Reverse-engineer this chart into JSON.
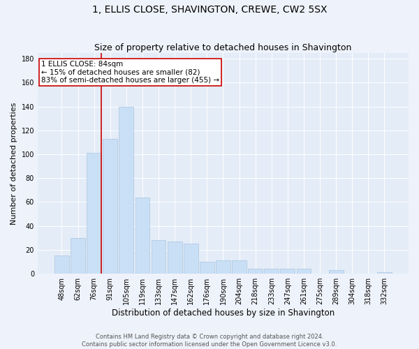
{
  "title": "1, ELLIS CLOSE, SHAVINGTON, CREWE, CW2 5SX",
  "subtitle": "Size of property relative to detached houses in Shavington",
  "xlabel": "Distribution of detached houses by size in Shavington",
  "ylabel": "Number of detached properties",
  "categories": [
    "48sqm",
    "62sqm",
    "76sqm",
    "91sqm",
    "105sqm",
    "119sqm",
    "133sqm",
    "147sqm",
    "162sqm",
    "176sqm",
    "190sqm",
    "204sqm",
    "218sqm",
    "233sqm",
    "247sqm",
    "261sqm",
    "275sqm",
    "289sqm",
    "304sqm",
    "318sqm",
    "332sqm"
  ],
  "values": [
    15,
    30,
    101,
    113,
    140,
    64,
    28,
    27,
    25,
    10,
    11,
    11,
    4,
    4,
    4,
    4,
    0,
    3,
    0,
    0,
    1
  ],
  "bar_color": "#c9dff5",
  "bar_edge_color": "#aac4e0",
  "vline_color": "#cc0000",
  "annotation_text": "1 ELLIS CLOSE: 84sqm\n← 15% of detached houses are smaller (82)\n83% of semi-detached houses are larger (455) →",
  "annotation_box_color": "#ffffff",
  "annotation_box_edge_color": "#cc0000",
  "ylim": [
    0,
    185
  ],
  "yticks": [
    0,
    20,
    40,
    60,
    80,
    100,
    120,
    140,
    160,
    180
  ],
  "bg_color": "#eef2fa",
  "plot_bg_color": "#e4ecf7",
  "grid_color": "#ffffff",
  "footer_line1": "Contains HM Land Registry data © Crown copyright and database right 2024.",
  "footer_line2": "Contains public sector information licensed under the Open Government Licence v3.0.",
  "title_fontsize": 10,
  "subtitle_fontsize": 9,
  "xlabel_fontsize": 8.5,
  "ylabel_fontsize": 8,
  "tick_fontsize": 7,
  "annotation_fontsize": 7.5,
  "footer_fontsize": 6
}
